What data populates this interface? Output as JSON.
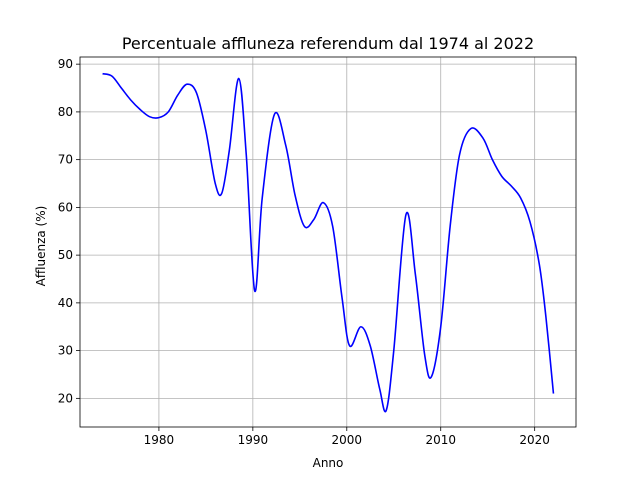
{
  "chart_data": {
    "type": "line",
    "title": "Percentuale affluneza referendum dal 1974 al 2022",
    "xlabel": "Anno",
    "ylabel": "Affluenza (%)",
    "xlim": [
      1971.6,
      2024.4
    ],
    "ylim": [
      14.0,
      91.5
    ],
    "xticks": [
      1980,
      1990,
      2000,
      2010,
      2020
    ],
    "yticks": [
      20,
      30,
      40,
      50,
      60,
      70,
      80,
      90
    ],
    "grid": true,
    "line_color": "#0000ff",
    "grid_color": "#b0b0b0",
    "series": [
      {
        "x": [
          1974,
          1975,
          1976,
          1977,
          1978,
          1979,
          1980,
          1981,
          1982,
          1983,
          1984,
          1985,
          1986,
          1986.7,
          1987.5,
          1988.5,
          1989.3,
          1990.2,
          1991,
          1992.3,
          1993.5,
          1994.5,
          1995.5,
          1996.5,
          1997.5,
          1998.5,
          1999.5,
          2000.3,
          2001.5,
          2002.5,
          2003.5,
          2004.2,
          2005,
          2006.3,
          2007.3,
          2008.3,
          2009,
          2010,
          2011,
          2012,
          2013.2,
          2014.5,
          2015.5,
          2016.5,
          2017.5,
          2018.5,
          2019.5,
          2020.5,
          2021.2,
          2022
        ],
        "y": [
          88,
          87.5,
          85,
          82.5,
          80.5,
          79,
          78.8,
          80,
          83.5,
          85.8,
          84,
          76,
          65,
          63,
          72,
          87,
          71,
          42.5,
          62,
          79.5,
          73,
          62.5,
          56,
          57.5,
          61,
          56,
          41,
          31,
          35,
          31,
          22,
          17.5,
          30,
          58.5,
          46,
          29,
          24.5,
          35,
          56,
          71,
          76.5,
          74.5,
          70,
          66.5,
          64.5,
          62,
          57,
          48,
          37,
          21
        ]
      }
    ]
  }
}
